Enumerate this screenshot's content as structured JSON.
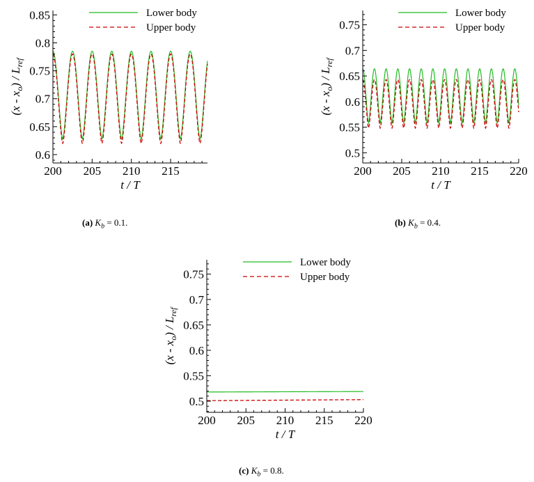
{
  "figure": {
    "captions": [
      {
        "label": "(a)",
        "symbol": "K",
        "sub": "b",
        "value": "= 0.1."
      },
      {
        "label": "(b)",
        "symbol": "K",
        "sub": "b",
        "value": "= 0.4."
      },
      {
        "label": "(c)",
        "symbol": "K",
        "sub": "b",
        "value": "= 0.8."
      }
    ]
  },
  "chart_data": [
    {
      "type": "line",
      "id": "a",
      "xlabel": "t / T",
      "ylabel": "(x - x_o) / L_ref",
      "xlim": [
        200,
        219.7
      ],
      "ylim": [
        0.585,
        0.858
      ],
      "xticks": [
        200,
        205,
        210,
        215
      ],
      "yticks": [
        0.6,
        0.65,
        0.7,
        0.75,
        0.8,
        0.85
      ],
      "xtick_labels": [
        "200",
        "205",
        "210",
        "215"
      ],
      "ytick_labels": [
        "0.6",
        "0.65",
        "0.7",
        "0.75",
        "0.8",
        "0.85"
      ],
      "series": [
        {
          "name": "Lower body",
          "color": "#22bb22",
          "style": "solid",
          "kind": "osc",
          "start": 0.785,
          "min": 0.628,
          "max": 0.785,
          "period": 2.5
        },
        {
          "name": "Upper body",
          "color": "#cc0000",
          "style": "dashed",
          "kind": "osc",
          "start": 0.78,
          "min": 0.62,
          "max": 0.78,
          "period": 2.5
        }
      ]
    },
    {
      "type": "line",
      "id": "b",
      "xlabel": "t / T",
      "ylabel": "(x - x_o) / L_ref",
      "xlim": [
        200,
        220
      ],
      "ylim": [
        0.48,
        0.778
      ],
      "xticks": [
        200,
        205,
        210,
        215,
        220
      ],
      "yticks": [
        0.5,
        0.55,
        0.6,
        0.65,
        0.7,
        0.75
      ],
      "xtick_labels": [
        "200",
        "205",
        "210",
        "215",
        "220"
      ],
      "ytick_labels": [
        "0.5",
        "0.55",
        "0.6",
        "0.65",
        "0.7",
        "0.75"
      ],
      "series": [
        {
          "name": "Lower body",
          "color": "#22bb22",
          "style": "solid",
          "kind": "osc",
          "start": 0.63,
          "min": 0.558,
          "max": 0.664,
          "period": 1.5
        },
        {
          "name": "Upper body",
          "color": "#cc0000",
          "style": "dashed",
          "kind": "osc",
          "start": 0.6,
          "min": 0.548,
          "max": 0.643,
          "period": 1.5
        }
      ]
    },
    {
      "type": "line",
      "id": "c",
      "xlabel": "t / T",
      "ylabel": "(x - x_o) / L_ref",
      "xlim": [
        200,
        220
      ],
      "ylim": [
        0.478,
        0.778
      ],
      "xticks": [
        200,
        205,
        210,
        215,
        220
      ],
      "yticks": [
        0.5,
        0.55,
        0.6,
        0.65,
        0.7,
        0.75
      ],
      "xtick_labels": [
        "200",
        "205",
        "210",
        "215",
        "220"
      ],
      "ytick_labels": [
        "0.5",
        "0.55",
        "0.6",
        "0.65",
        "0.7",
        "0.75"
      ],
      "series": [
        {
          "name": "Lower body",
          "color": "#22bb22",
          "style": "solid",
          "kind": "flat",
          "start": 0.518,
          "end": 0.519
        },
        {
          "name": "Upper body",
          "color": "#cc0000",
          "style": "dashed",
          "kind": "flat",
          "start": 0.501,
          "end": 0.503
        }
      ]
    }
  ]
}
